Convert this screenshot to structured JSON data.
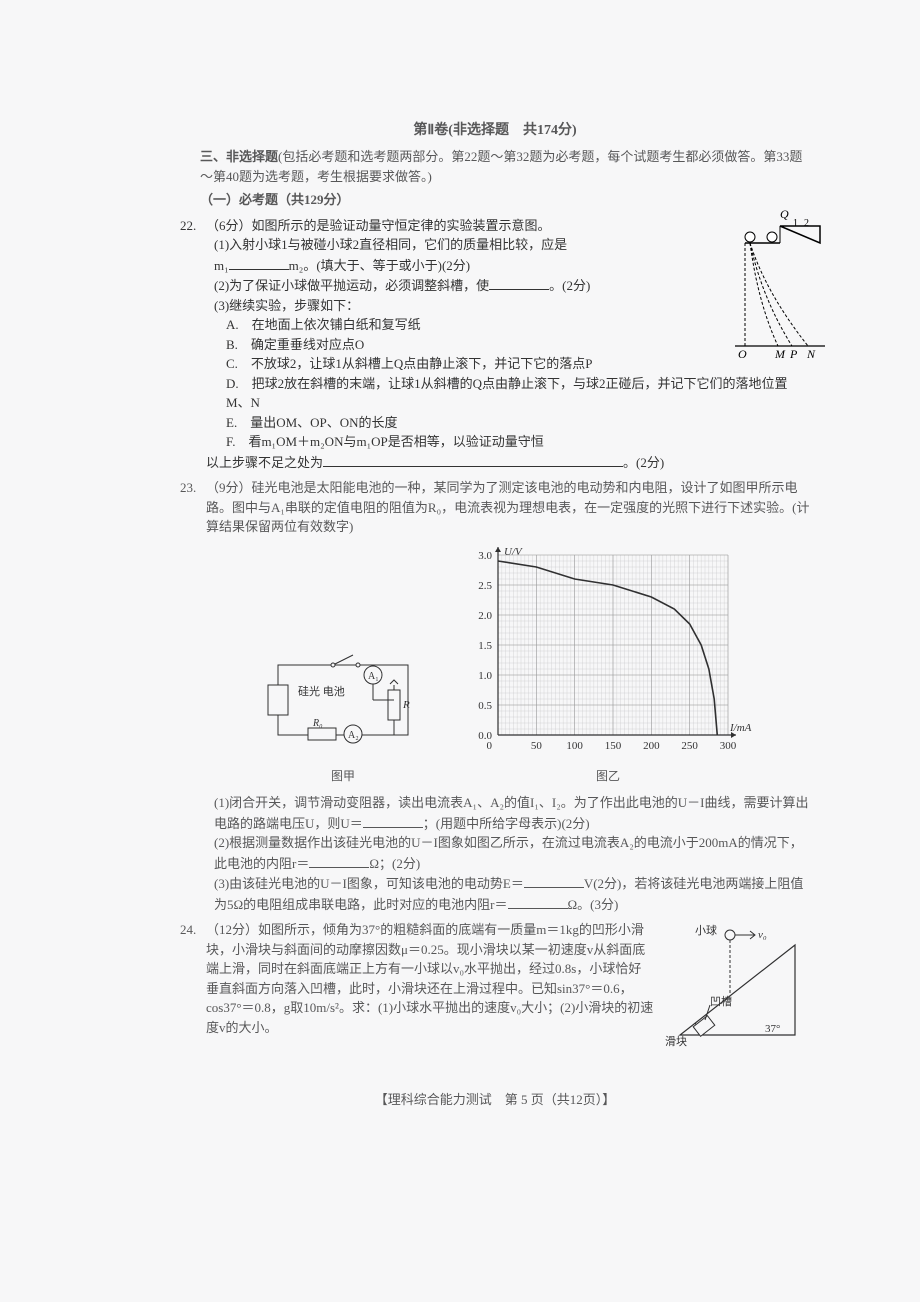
{
  "header": {
    "title": "第Ⅱ卷(非选择题　共174分)"
  },
  "section3": {
    "label": "三、非选择题",
    "intro": "(包括必考题和选考题两部分。第22题～第32题为必考题，每个试题考生都必须做答。第33题～第40题为选考题，考生根据要求做答。)",
    "part1": "（一）必考题（共129分）"
  },
  "q22": {
    "num": "22.",
    "points": "（6分）",
    "stem": "如图所示的是验证动量守恒定律的实验装置示意图。",
    "p1_pre": "(1)入射小球1与被碰小球2直径相同，它们的质量相比较，应是",
    "p1_m1": "m₁",
    "p1_m2": "m₂",
    "p1_hint": "。(填大于、等于或小于)(2分)",
    "p2_pre": "(2)为了保证小球做平抛运动，必须调整斜槽，使",
    "p2_suffix": "。(2分)",
    "p3": "(3)继续实验，步骤如下：",
    "steps": {
      "A": "A.　在地面上依次铺白纸和复写纸",
      "B": "B.　确定重垂线对应点O",
      "C": "C.　不放球2，让球1从斜槽上Q点由静止滚下，并记下它的落点P",
      "D": "D.　把球2放在斜槽的末端，让球1从斜槽的Q点由静止滚下，与球2正碰后，并记下它们的落地位置M、N",
      "E": "E.　量出OM、OP、ON的长度",
      "F": "F.　看m₁OM＋m₂ON与m₁OP是否相等，以验证动量守恒"
    },
    "tail_pre": "以上步骤不足之处为",
    "tail_suffix": "。(2分)",
    "diagram_labels": {
      "Q": "Q",
      "one": "1",
      "two": "2",
      "O": "O",
      "M": "M",
      "P": "P",
      "N": "N"
    }
  },
  "q23": {
    "num": "23.",
    "points": "（9分）",
    "stem": "硅光电池是太阳能电池的一种，某同学为了测定该电池的电动势和内电阻，设计了如图甲所示电路。图中与A₁串联的定值电阻的阻值为R₀，电流表视为理想电表，在一定强度的光照下进行下述实验。(计算结果保留两位有效数字)",
    "circuit_label": "硅光\n电池",
    "circuit_R0": "R₀",
    "circuit_R": "R",
    "circuit_A1": "A₁",
    "circuit_A2": "A₂",
    "caption1": "图甲",
    "caption2": "图乙",
    "p1_pre": "(1)闭合开关，调节滑动变阻器，读出电流表A₁、A₂的值I₁、I₂。为了作出此电池的U－I曲线，需要计算出电路的路端电压U，则U＝",
    "p1_suffix": "；(用题中所给字母表示)(2分)",
    "p2_pre": "(2)根据测量数据作出该硅光电池的U－I图象如图乙所示，在流过电流表A₂的电流小于200mA的情况下，此电池的内阻r＝",
    "p2_suffix": "Ω；(2分)",
    "p3_pre": "(3)由该硅光电池的U－I图象，可知该电池的电动势E＝",
    "p3_mid": "V(2分)，若将该硅光电池两端接上阻值为5Ω的电阻组成串联电路，此时对应的电池内阻r＝",
    "p3_suffix": "Ω。(3分)",
    "graph": {
      "type": "line",
      "x_axis": "I/mA",
      "y_axis": "U/V",
      "xlim": [
        0,
        300
      ],
      "ylim": [
        0,
        3.0
      ],
      "x_ticks": [
        0,
        50,
        100,
        150,
        200,
        250,
        300
      ],
      "y_ticks": [
        0,
        0.5,
        1.0,
        1.5,
        2.0,
        2.5,
        3.0
      ],
      "minor_x": 10,
      "minor_y": 10,
      "grid_color": "#888",
      "minor_grid_color": "#bbb",
      "line_color": "#000",
      "line_width": 1.6,
      "background": "#ffffff",
      "font_size": 11,
      "data": [
        [
          0,
          2.9
        ],
        [
          50,
          2.8
        ],
        [
          100,
          2.6
        ],
        [
          150,
          2.5
        ],
        [
          200,
          2.3
        ],
        [
          230,
          2.1
        ],
        [
          250,
          1.85
        ],
        [
          265,
          1.5
        ],
        [
          275,
          1.1
        ],
        [
          282,
          0.6
        ],
        [
          286,
          0.0
        ]
      ]
    }
  },
  "q24": {
    "num": "24.",
    "points": "（12分）",
    "stem": "如图所示，倾角为37°的粗糙斜面的底端有一质量m＝1kg的凹形小滑块，小滑块与斜面间的动摩擦因数μ＝0.25。现小滑块以某一初速度v从斜面底端上滑，同时在斜面底端正上方有一小球以v₀水平抛出，经过0.8s，小球恰好垂直斜面方向落入凹槽，此时，小滑块还在上滑过程中。已知sin37°＝0.6，cos37°＝0.8，g取10m/s²。求：(1)小球水平抛出的速度v₀大小；(2)小滑块的初速度v的大小。",
    "labels": {
      "ball": "小球",
      "v0": "v₀",
      "groove": "凹槽",
      "block": "滑块",
      "angle": "37°"
    }
  },
  "footer": "【理科综合能力测试　第 5 页（共12页）】"
}
